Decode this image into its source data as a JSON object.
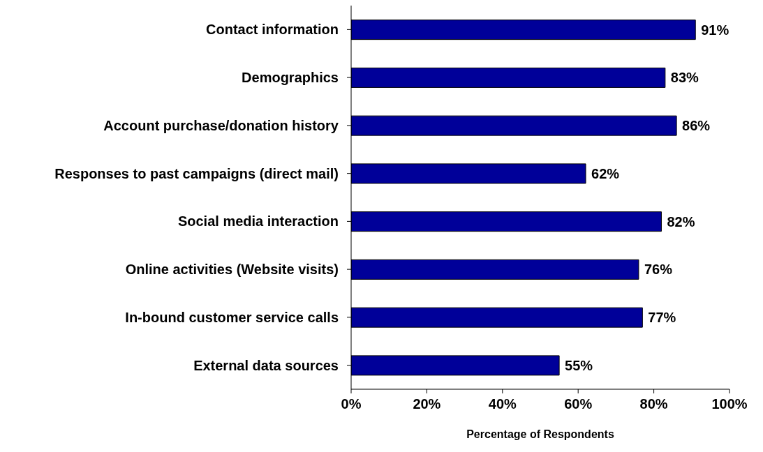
{
  "chart_data": {
    "type": "bar",
    "orientation": "horizontal",
    "xlabel": "Percentage of Respondents",
    "categories": [
      "Contact information",
      "Demographics",
      "Account purchase/donation history",
      "Responses to past campaigns (direct mail)",
      "Social media interaction",
      "Online activities (Website visits)",
      "In-bound customer service calls",
      "External data sources"
    ],
    "values": [
      91,
      83,
      86,
      62,
      82,
      76,
      77,
      55
    ],
    "value_labels": [
      "91%",
      "83%",
      "86%",
      "62%",
      "82%",
      "76%",
      "77%",
      "55%"
    ],
    "color": "#000099",
    "xlim": [
      0,
      100
    ],
    "xticks": [
      {
        "value": 0,
        "label": "0%"
      },
      {
        "value": 20,
        "label": "20%"
      },
      {
        "value": 40,
        "label": "40%"
      },
      {
        "value": 60,
        "label": "60%"
      },
      {
        "value": 80,
        "label": "80%"
      },
      {
        "value": 100,
        "label": "100%"
      }
    ]
  }
}
